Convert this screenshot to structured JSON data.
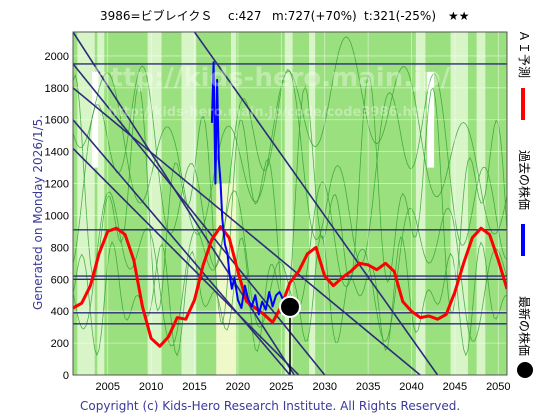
{
  "header": {
    "title": "3986=ビブレイクＳ",
    "current": "c:427",
    "max_text": "m:727(+70%)",
    "target_text": "t:321(-25%)",
    "stars": "★★"
  },
  "side_label": "Generated on Monday 2026/1/5.",
  "footer": "Copyright (c) Kids-Hero Research Institute. All Rights Reserved.",
  "watermark": {
    "url": "http://kids-hero.main.jp/",
    "code_url": "http://kids-hero.main.jp/code/code3986.html"
  },
  "legend": [
    {
      "label": "ＡＩ予測",
      "color": "#ff0000"
    },
    {
      "label": "過去の株価",
      "color": "#0000ff"
    },
    {
      "label": "最新の株価",
      "color": "#000000"
    }
  ],
  "colors": {
    "background_green": "#9be07e",
    "light_green": "#d7f5c6",
    "pale_yellow": "#eef8c8",
    "white_band": "#ffffff",
    "thin_lines": "#2e9e2e",
    "trend_lines": "#2c2c7a",
    "ai_forecast": "#ff0000",
    "past_price": "#0000ff",
    "latest_marker": "#000000"
  },
  "chart_data": {
    "type": "line",
    "title": "3986=ビブレイクＳ",
    "xlabel": "",
    "ylabel": "",
    "xlim": [
      2001,
      2051
    ],
    "ylim": [
      0,
      2150
    ],
    "x_ticks": [
      2005,
      2010,
      2015,
      2020,
      2025,
      2030,
      2035,
      2040,
      2045,
      2050
    ],
    "y_ticks": [
      0,
      200,
      400,
      600,
      800,
      1000,
      1200,
      1400,
      1600,
      1800,
      2000
    ],
    "grid": true,
    "latest_price": {
      "year": 2026.0,
      "value": 427
    },
    "horizontal_levels": [
      1950,
      910,
      620,
      600,
      390,
      321
    ],
    "trend_lines": [
      {
        "x1": 2001,
        "y1": 2150,
        "x2": 2026.5,
        "y2": 0
      },
      {
        "x1": 2001,
        "y1": 1950,
        "x2": 2030,
        "y2": 0
      },
      {
        "x1": 2001,
        "y1": 1600,
        "x2": 2026,
        "y2": 0
      },
      {
        "x1": 2001,
        "y1": 1800,
        "x2": 2041,
        "y2": 0
      },
      {
        "x1": 2015,
        "y1": 2150,
        "x2": 2043,
        "y2": 0
      },
      {
        "x1": 2001,
        "y1": 1420,
        "x2": 2027,
        "y2": 0
      }
    ],
    "series": [
      {
        "name": "ＡＩ予測",
        "color": "#ff0000",
        "x": [
          2001,
          2002,
          2003,
          2004,
          2005,
          2006,
          2007,
          2008,
          2009,
          2010,
          2011,
          2012,
          2013,
          2014,
          2015,
          2016,
          2017,
          2018,
          2019,
          2020,
          2021,
          2022,
          2023,
          2024,
          2025,
          2026,
          2027,
          2028,
          2029,
          2030,
          2031,
          2032,
          2033,
          2034,
          2035,
          2036,
          2037,
          2038,
          2039,
          2040,
          2041,
          2042,
          2043,
          2044,
          2045,
          2046,
          2047,
          2048,
          2049,
          2050,
          2051
        ],
        "values": [
          420,
          450,
          560,
          760,
          900,
          920,
          880,
          720,
          430,
          230,
          180,
          240,
          360,
          350,
          470,
          690,
          850,
          930,
          860,
          650,
          460,
          420,
          380,
          330,
          430,
          580,
          650,
          760,
          800,
          620,
          560,
          610,
          650,
          700,
          690,
          660,
          700,
          650,
          460,
          400,
          360,
          370,
          350,
          380,
          520,
          700,
          860,
          920,
          880,
          720,
          540
        ]
      },
      {
        "name": "過去の株価",
        "color": "#0000ff",
        "x": [
          2017.0,
          2017.2,
          2017.4,
          2017.6,
          2017.8,
          2018.0,
          2018.2,
          2018.5,
          2018.8,
          2019.0,
          2019.3,
          2019.6,
          2020.0,
          2020.4,
          2020.8,
          2021.2,
          2021.6,
          2022.0,
          2022.4,
          2022.8,
          2023.2,
          2023.6,
          2024.0,
          2024.4,
          2024.8,
          2025.2,
          2025.6,
          2026.0
        ],
        "values": [
          1580,
          1960,
          1200,
          1850,
          1350,
          1200,
          980,
          820,
          760,
          650,
          540,
          610,
          470,
          420,
          560,
          470,
          430,
          500,
          380,
          460,
          410,
          520,
          430,
          500,
          520,
          470,
          440,
          427
        ]
      }
    ]
  }
}
